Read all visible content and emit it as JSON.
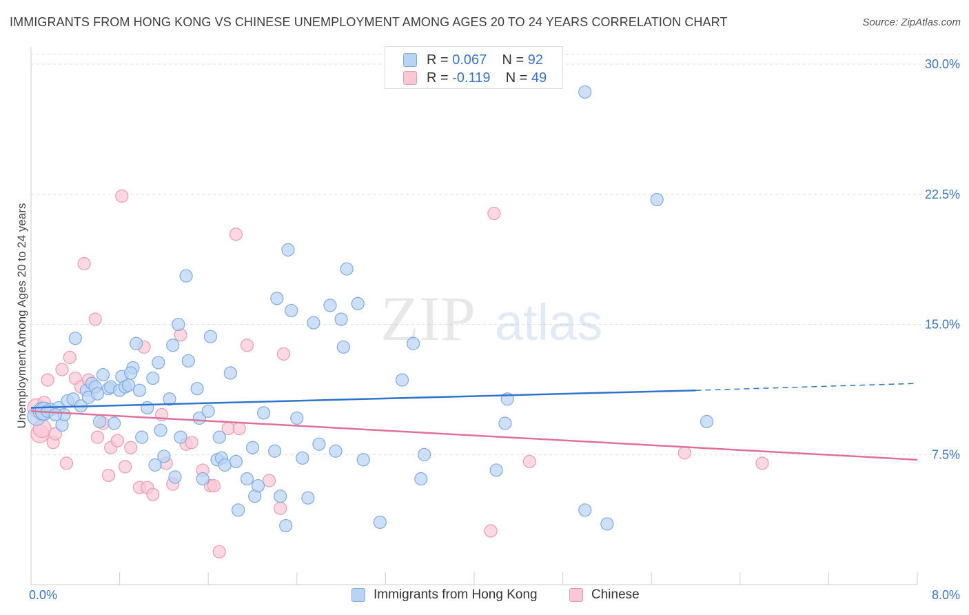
{
  "title": "IMMIGRANTS FROM HONG KONG VS CHINESE UNEMPLOYMENT AMONG AGES 20 TO 24 YEARS CORRELATION CHART",
  "source": "Source: ZipAtlas.com",
  "watermark": {
    "zip": "ZIP",
    "atlas": "atlas"
  },
  "colors": {
    "blue_fill": "#b9d3f4",
    "blue_stroke": "#7eaae0",
    "blue_line": "#2f74cc",
    "pink_fill": "#f9c7d6",
    "pink_stroke": "#ee9ab3",
    "pink_line": "#e0709a",
    "value_text": "#3a74c9",
    "grid": "#dedede"
  },
  "legend": {
    "r_label": "R =",
    "n_label": "N =",
    "entries": [
      {
        "r": "0.067",
        "n": "92",
        "color": "blue"
      },
      {
        "r": "-0.119",
        "n": "49",
        "color": "pink"
      }
    ]
  },
  "bottom_legend": [
    {
      "label": "Immigrants from Hong Kong",
      "color": "blue"
    },
    {
      "label": "Chinese",
      "color": "pink"
    }
  ],
  "chart_data": {
    "type": "scatter",
    "title": "IMMIGRANTS FROM HONG KONG VS CHINESE UNEMPLOYMENT AMONG AGES 20 TO 24 YEARS CORRELATION CHART",
    "xlabel": "",
    "ylabel": "Unemployment Among Ages 20 to 24 years",
    "xlim": [
      0,
      8
    ],
    "ylim": [
      0,
      31
    ],
    "x_tick_labels": [
      {
        "value": 0,
        "label": "0.0%"
      },
      {
        "value": 8,
        "label": "8.0%"
      }
    ],
    "y_ticks": [
      {
        "value": 7.5,
        "label": "7.5%"
      },
      {
        "value": 15,
        "label": "15.0%"
      },
      {
        "value": 22.5,
        "label": "22.5%"
      },
      {
        "value": 30,
        "label": "30.0%"
      }
    ],
    "grid": true,
    "legend_position": "top-center",
    "series": [
      {
        "name": "Immigrants from Hong Kong",
        "color": "blue",
        "trend": {
          "x0": 0,
          "y0": 10.2,
          "x1": 6.0,
          "y1": 11.2,
          "dash_to_x": 8.0,
          "dash_to_y": 11.6
        },
        "points": [
          [
            0.05,
            9.7
          ],
          [
            0.1,
            10.0
          ],
          [
            0.12,
            10.0
          ],
          [
            0.18,
            10.1
          ],
          [
            0.25,
            10.2
          ],
          [
            0.28,
            9.2
          ],
          [
            0.3,
            9.8
          ],
          [
            0.33,
            10.6
          ],
          [
            0.38,
            10.7
          ],
          [
            0.4,
            14.2
          ],
          [
            0.45,
            10.3
          ],
          [
            0.5,
            11.2
          ],
          [
            0.52,
            10.8
          ],
          [
            0.55,
            11.6
          ],
          [
            0.58,
            11.4
          ],
          [
            0.62,
            9.4
          ],
          [
            0.65,
            12.1
          ],
          [
            0.7,
            11.3
          ],
          [
            0.72,
            11.4
          ],
          [
            0.75,
            9.3
          ],
          [
            0.8,
            11.2
          ],
          [
            0.82,
            12.0
          ],
          [
            0.85,
            11.4
          ],
          [
            0.88,
            11.5
          ],
          [
            0.92,
            12.5
          ],
          [
            0.95,
            13.9
          ],
          [
            0.98,
            11.2
          ],
          [
            1.0,
            8.5
          ],
          [
            1.05,
            10.2
          ],
          [
            1.1,
            11.9
          ],
          [
            1.12,
            6.9
          ],
          [
            1.15,
            12.8
          ],
          [
            1.17,
            8.9
          ],
          [
            1.2,
            7.4
          ],
          [
            1.25,
            10.7
          ],
          [
            1.28,
            13.8
          ],
          [
            1.3,
            6.2
          ],
          [
            1.33,
            15.0
          ],
          [
            1.35,
            8.5
          ],
          [
            1.4,
            17.8
          ],
          [
            1.42,
            12.9
          ],
          [
            1.5,
            11.3
          ],
          [
            1.52,
            9.6
          ],
          [
            1.55,
            6.1
          ],
          [
            1.6,
            10.0
          ],
          [
            1.62,
            14.3
          ],
          [
            1.68,
            7.2
          ],
          [
            1.7,
            8.5
          ],
          [
            1.72,
            7.3
          ],
          [
            1.75,
            6.9
          ],
          [
            1.8,
            12.2
          ],
          [
            1.85,
            7.1
          ],
          [
            1.87,
            4.3
          ],
          [
            1.95,
            6.1
          ],
          [
            2.0,
            7.9
          ],
          [
            2.02,
            5.1
          ],
          [
            2.05,
            5.7
          ],
          [
            2.1,
            9.9
          ],
          [
            2.2,
            7.7
          ],
          [
            2.22,
            16.5
          ],
          [
            2.25,
            5.1
          ],
          [
            2.3,
            3.4
          ],
          [
            2.32,
            19.3
          ],
          [
            2.35,
            15.8
          ],
          [
            2.4,
            9.6
          ],
          [
            2.45,
            7.3
          ],
          [
            2.5,
            5.0
          ],
          [
            2.55,
            15.1
          ],
          [
            2.6,
            8.1
          ],
          [
            2.7,
            16.1
          ],
          [
            2.75,
            7.7
          ],
          [
            2.8,
            15.3
          ],
          [
            2.82,
            13.7
          ],
          [
            2.85,
            18.2
          ],
          [
            2.95,
            16.2
          ],
          [
            3.0,
            7.2
          ],
          [
            3.15,
            3.6
          ],
          [
            3.35,
            11.8
          ],
          [
            3.45,
            13.9
          ],
          [
            3.52,
            6.1
          ],
          [
            3.55,
            7.5
          ],
          [
            4.2,
            6.6
          ],
          [
            4.28,
            9.3
          ],
          [
            4.3,
            10.7
          ],
          [
            5.0,
            4.3
          ],
          [
            5.2,
            3.5
          ],
          [
            5.65,
            22.2
          ],
          [
            6.1,
            9.4
          ],
          [
            0.15,
            10.0
          ],
          [
            0.22,
            9.8
          ],
          [
            0.6,
            11.0
          ],
          [
            0.9,
            12.2
          ]
        ]
      },
      {
        "name": "Chinese",
        "color": "pink",
        "trend": {
          "x0": 0,
          "y0": 10.0,
          "x1": 8.0,
          "y1": 7.2
        },
        "points": [
          [
            0.05,
            10.2
          ],
          [
            0.08,
            8.7
          ],
          [
            0.1,
            9.0
          ],
          [
            0.15,
            11.8
          ],
          [
            0.2,
            8.2
          ],
          [
            0.22,
            8.7
          ],
          [
            0.28,
            12.4
          ],
          [
            0.32,
            7.0
          ],
          [
            0.35,
            13.1
          ],
          [
            0.4,
            11.9
          ],
          [
            0.45,
            11.4
          ],
          [
            0.48,
            18.5
          ],
          [
            0.52,
            11.8
          ],
          [
            0.58,
            15.3
          ],
          [
            0.6,
            8.5
          ],
          [
            0.65,
            9.3
          ],
          [
            0.7,
            6.3
          ],
          [
            0.72,
            7.9
          ],
          [
            0.78,
            8.3
          ],
          [
            0.82,
            22.4
          ],
          [
            0.85,
            6.8
          ],
          [
            0.9,
            7.9
          ],
          [
            0.98,
            5.6
          ],
          [
            1.02,
            13.7
          ],
          [
            1.05,
            5.6
          ],
          [
            1.1,
            5.2
          ],
          [
            1.18,
            9.8
          ],
          [
            1.22,
            7.0
          ],
          [
            1.28,
            5.8
          ],
          [
            1.35,
            14.4
          ],
          [
            1.4,
            8.1
          ],
          [
            1.45,
            8.2
          ],
          [
            1.55,
            6.6
          ],
          [
            1.62,
            5.7
          ],
          [
            1.65,
            5.7
          ],
          [
            1.7,
            1.9
          ],
          [
            1.78,
            9.0
          ],
          [
            1.85,
            20.2
          ],
          [
            1.88,
            9.0
          ],
          [
            1.95,
            13.8
          ],
          [
            2.15,
            6.0
          ],
          [
            2.25,
            4.4
          ],
          [
            2.28,
            13.3
          ],
          [
            4.15,
            3.1
          ],
          [
            4.18,
            21.4
          ],
          [
            4.5,
            7.1
          ],
          [
            5.9,
            7.6
          ],
          [
            6.6,
            7.0
          ],
          [
            0.12,
            10.5
          ]
        ]
      }
    ],
    "annotations": [
      {
        "series": "Immigrants from Hong Kong",
        "x": 5.0,
        "y": 28.4,
        "note": "outlier point near legend"
      }
    ]
  }
}
